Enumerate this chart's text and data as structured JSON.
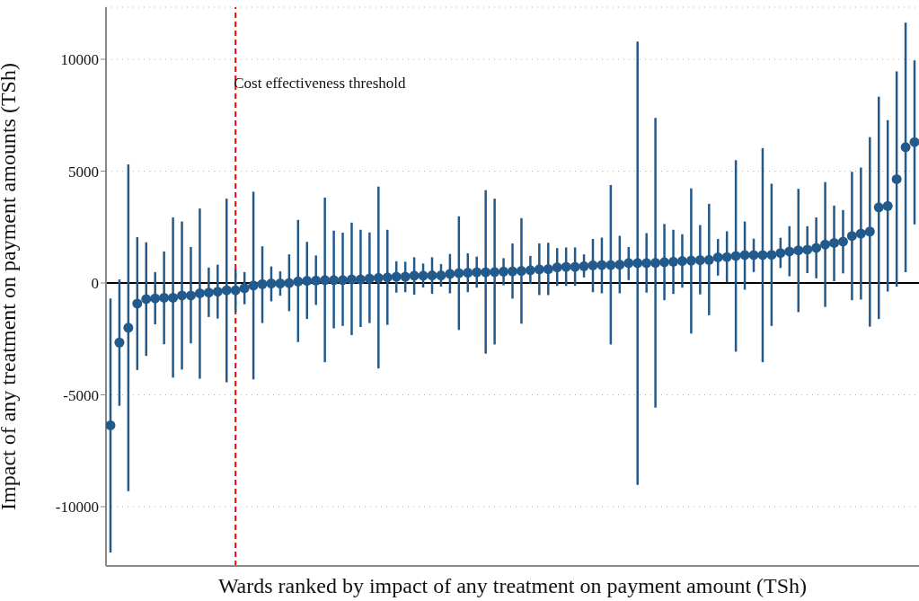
{
  "chart_data": {
    "type": "scatter",
    "xlabel": "Wards ranked by impact of any treatment on payment amount (TSh)",
    "ylabel": "Impact of any treatment on payment amounts (TSh)",
    "categories": [
      null,
      null,
      null,
      null,
      null,
      null,
      null,
      null,
      null,
      null,
      null,
      null,
      null,
      null,
      null,
      null,
      null,
      null,
      null,
      null,
      null,
      null,
      null,
      null,
      null,
      null,
      null,
      null,
      null,
      null,
      null,
      null,
      null,
      null,
      null,
      null,
      null,
      null,
      null,
      null,
      null,
      null,
      null,
      null,
      null,
      null,
      null,
      null,
      null,
      null,
      null,
      null,
      null,
      null,
      null,
      null,
      null,
      null,
      null,
      null,
      null,
      null,
      null,
      null,
      null,
      null,
      null,
      null,
      null,
      null,
      null,
      null,
      null,
      null,
      null,
      null,
      null,
      null,
      null,
      null,
      null,
      null,
      null,
      null,
      null,
      null,
      null,
      null,
      null,
      null,
      null
    ],
    "values": [
      -6360,
      -2660,
      -2000,
      -920,
      -720,
      -690,
      -660,
      -660,
      -560,
      -560,
      -460,
      -430,
      -390,
      -330,
      -330,
      -230,
      -110,
      -50,
      -20,
      -20,
      0,
      70,
      100,
      110,
      130,
      130,
      130,
      160,
      160,
      200,
      230,
      250,
      280,
      280,
      330,
      330,
      340,
      340,
      410,
      440,
      460,
      480,
      480,
      490,
      510,
      520,
      540,
      570,
      610,
      620,
      700,
      720,
      720,
      750,
      790,
      800,
      800,
      820,
      890,
      890,
      890,
      900,
      930,
      950,
      980,
      1000,
      1020,
      1030,
      1150,
      1160,
      1210,
      1250,
      1250,
      1250,
      1260,
      1340,
      1410,
      1460,
      1490,
      1570,
      1720,
      1790,
      1850,
      2100,
      2210,
      2300,
      3380,
      3440,
      4640,
      6070,
      6300
    ],
    "errors": [
      [
        -12050,
        -690
      ],
      [
        -5490,
        160
      ],
      [
        -9310,
        5300
      ],
      [
        -3890,
        2050
      ],
      [
        -3260,
        1820
      ],
      [
        -1850,
        490
      ],
      [
        -2740,
        1410
      ],
      [
        -4230,
        2930
      ],
      [
        -3870,
        2750
      ],
      [
        -2700,
        1610
      ],
      [
        -4280,
        3330
      ],
      [
        -1520,
        690
      ],
      [
        -1590,
        820
      ],
      [
        -4440,
        3770
      ],
      [
        -1310,
        620
      ],
      [
        -950,
        490
      ],
      [
        -4310,
        4080
      ],
      [
        -1790,
        1640
      ],
      [
        -820,
        740
      ],
      [
        -570,
        520
      ],
      [
        -1260,
        1280
      ],
      [
        -2640,
        2820
      ],
      [
        -1610,
        1840
      ],
      [
        -980,
        1230
      ],
      [
        -3540,
        3820
      ],
      [
        -2030,
        2340
      ],
      [
        -1920,
        2250
      ],
      [
        -2330,
        2700
      ],
      [
        -1970,
        2380
      ],
      [
        -1790,
        2260
      ],
      [
        -3820,
        4310
      ],
      [
        -1870,
        2380
      ],
      [
        -430,
        970
      ],
      [
        -410,
        950
      ],
      [
        -520,
        1150
      ],
      [
        -200,
        870
      ],
      [
        -480,
        1150
      ],
      [
        -160,
        850
      ],
      [
        -460,
        1300
      ],
      [
        -2100,
        2980
      ],
      [
        -410,
        1330
      ],
      [
        -210,
        1180
      ],
      [
        -3160,
        4150
      ],
      [
        -2750,
        3770
      ],
      [
        -100,
        1110
      ],
      [
        -700,
        1770
      ],
      [
        -1820,
        2900
      ],
      [
        -50,
        1210
      ],
      [
        -540,
        1770
      ],
      [
        -540,
        1800
      ],
      [
        -130,
        1560
      ],
      [
        -130,
        1590
      ],
      [
        -130,
        1590
      ],
      [
        250,
        1280
      ],
      [
        -410,
        1970
      ],
      [
        -460,
        2030
      ],
      [
        -2750,
        4380
      ],
      [
        -460,
        2110
      ],
      [
        130,
        1610
      ],
      [
        -9030,
        10790
      ],
      [
        -430,
        2230
      ],
      [
        -5570,
        7380
      ],
      [
        -770,
        2640
      ],
      [
        -490,
        2380
      ],
      [
        -210,
        2180
      ],
      [
        -2260,
        4230
      ],
      [
        -510,
        2590
      ],
      [
        -1440,
        3540
      ],
      [
        330,
        1970
      ],
      [
        30,
        2310
      ],
      [
        -3070,
        5490
      ],
      [
        -300,
        2750
      ],
      [
        490,
        1980
      ],
      [
        -3540,
        6030
      ],
      [
        -1920,
        4440
      ],
      [
        670,
        2020
      ],
      [
        300,
        2540
      ],
      [
        -1300,
        4210
      ],
      [
        440,
        2540
      ],
      [
        210,
        2930
      ],
      [
        -1070,
        4510
      ],
      [
        80,
        3460
      ],
      [
        430,
        3260
      ],
      [
        -770,
        4970
      ],
      [
        -740,
        5160
      ],
      [
        -1950,
        6520
      ],
      [
        -1610,
        8330
      ],
      [
        -380,
        7280
      ],
      [
        -160,
        9460
      ],
      [
        480,
        11640
      ],
      [
        2620,
        9950
      ]
    ],
    "color": "#225a8c",
    "marker": "circle",
    "ylim": [
      -12650,
      12330
    ],
    "yticks": [
      -10000,
      -5000,
      0,
      5000,
      10000
    ],
    "grid": "y",
    "tick_labels": "y",
    "annotations": [
      "Cost effectiveness threshold"
    ],
    "ref_lines": [
      {
        "axis": "y",
        "value": 0,
        "color": "#000000",
        "line_style": "solid"
      }
    ]
  }
}
